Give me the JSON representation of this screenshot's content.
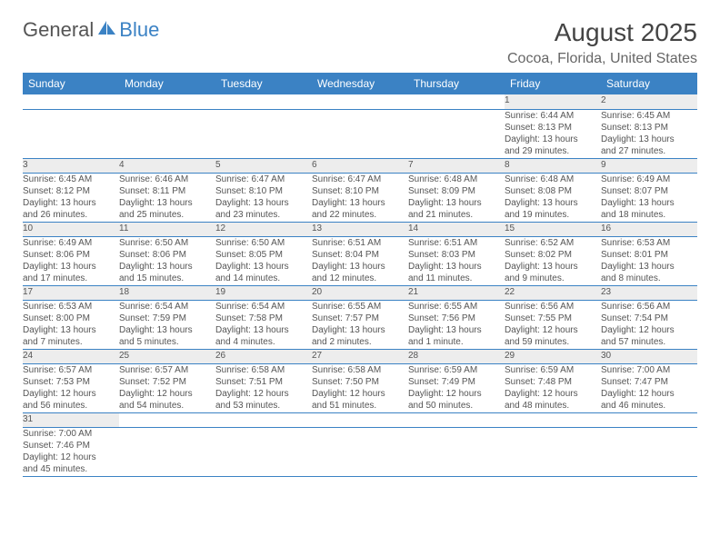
{
  "logo": {
    "part1": "General",
    "part2": "Blue"
  },
  "title": "August 2025",
  "location": "Cocoa, Florida, United States",
  "colors": {
    "header_bg": "#3b82c4",
    "header_text": "#ffffff",
    "daynum_bg": "#ededed",
    "border": "#3b82c4",
    "text": "#555555",
    "background": "#ffffff"
  },
  "fonts": {
    "title_size": 28,
    "location_size": 16,
    "head_size": 12,
    "body_size": 10
  },
  "day_headers": [
    "Sunday",
    "Monday",
    "Tuesday",
    "Wednesday",
    "Thursday",
    "Friday",
    "Saturday"
  ],
  "weeks": [
    [
      null,
      null,
      null,
      null,
      null,
      {
        "n": "1",
        "sr": "Sunrise: 6:44 AM",
        "ss": "Sunset: 8:13 PM",
        "d1": "Daylight: 13 hours",
        "d2": "and 29 minutes."
      },
      {
        "n": "2",
        "sr": "Sunrise: 6:45 AM",
        "ss": "Sunset: 8:13 PM",
        "d1": "Daylight: 13 hours",
        "d2": "and 27 minutes."
      }
    ],
    [
      {
        "n": "3",
        "sr": "Sunrise: 6:45 AM",
        "ss": "Sunset: 8:12 PM",
        "d1": "Daylight: 13 hours",
        "d2": "and 26 minutes."
      },
      {
        "n": "4",
        "sr": "Sunrise: 6:46 AM",
        "ss": "Sunset: 8:11 PM",
        "d1": "Daylight: 13 hours",
        "d2": "and 25 minutes."
      },
      {
        "n": "5",
        "sr": "Sunrise: 6:47 AM",
        "ss": "Sunset: 8:10 PM",
        "d1": "Daylight: 13 hours",
        "d2": "and 23 minutes."
      },
      {
        "n": "6",
        "sr": "Sunrise: 6:47 AM",
        "ss": "Sunset: 8:10 PM",
        "d1": "Daylight: 13 hours",
        "d2": "and 22 minutes."
      },
      {
        "n": "7",
        "sr": "Sunrise: 6:48 AM",
        "ss": "Sunset: 8:09 PM",
        "d1": "Daylight: 13 hours",
        "d2": "and 21 minutes."
      },
      {
        "n": "8",
        "sr": "Sunrise: 6:48 AM",
        "ss": "Sunset: 8:08 PM",
        "d1": "Daylight: 13 hours",
        "d2": "and 19 minutes."
      },
      {
        "n": "9",
        "sr": "Sunrise: 6:49 AM",
        "ss": "Sunset: 8:07 PM",
        "d1": "Daylight: 13 hours",
        "d2": "and 18 minutes."
      }
    ],
    [
      {
        "n": "10",
        "sr": "Sunrise: 6:49 AM",
        "ss": "Sunset: 8:06 PM",
        "d1": "Daylight: 13 hours",
        "d2": "and 17 minutes."
      },
      {
        "n": "11",
        "sr": "Sunrise: 6:50 AM",
        "ss": "Sunset: 8:06 PM",
        "d1": "Daylight: 13 hours",
        "d2": "and 15 minutes."
      },
      {
        "n": "12",
        "sr": "Sunrise: 6:50 AM",
        "ss": "Sunset: 8:05 PM",
        "d1": "Daylight: 13 hours",
        "d2": "and 14 minutes."
      },
      {
        "n": "13",
        "sr": "Sunrise: 6:51 AM",
        "ss": "Sunset: 8:04 PM",
        "d1": "Daylight: 13 hours",
        "d2": "and 12 minutes."
      },
      {
        "n": "14",
        "sr": "Sunrise: 6:51 AM",
        "ss": "Sunset: 8:03 PM",
        "d1": "Daylight: 13 hours",
        "d2": "and 11 minutes."
      },
      {
        "n": "15",
        "sr": "Sunrise: 6:52 AM",
        "ss": "Sunset: 8:02 PM",
        "d1": "Daylight: 13 hours",
        "d2": "and 9 minutes."
      },
      {
        "n": "16",
        "sr": "Sunrise: 6:53 AM",
        "ss": "Sunset: 8:01 PM",
        "d1": "Daylight: 13 hours",
        "d2": "and 8 minutes."
      }
    ],
    [
      {
        "n": "17",
        "sr": "Sunrise: 6:53 AM",
        "ss": "Sunset: 8:00 PM",
        "d1": "Daylight: 13 hours",
        "d2": "and 7 minutes."
      },
      {
        "n": "18",
        "sr": "Sunrise: 6:54 AM",
        "ss": "Sunset: 7:59 PM",
        "d1": "Daylight: 13 hours",
        "d2": "and 5 minutes."
      },
      {
        "n": "19",
        "sr": "Sunrise: 6:54 AM",
        "ss": "Sunset: 7:58 PM",
        "d1": "Daylight: 13 hours",
        "d2": "and 4 minutes."
      },
      {
        "n": "20",
        "sr": "Sunrise: 6:55 AM",
        "ss": "Sunset: 7:57 PM",
        "d1": "Daylight: 13 hours",
        "d2": "and 2 minutes."
      },
      {
        "n": "21",
        "sr": "Sunrise: 6:55 AM",
        "ss": "Sunset: 7:56 PM",
        "d1": "Daylight: 13 hours",
        "d2": "and 1 minute."
      },
      {
        "n": "22",
        "sr": "Sunrise: 6:56 AM",
        "ss": "Sunset: 7:55 PM",
        "d1": "Daylight: 12 hours",
        "d2": "and 59 minutes."
      },
      {
        "n": "23",
        "sr": "Sunrise: 6:56 AM",
        "ss": "Sunset: 7:54 PM",
        "d1": "Daylight: 12 hours",
        "d2": "and 57 minutes."
      }
    ],
    [
      {
        "n": "24",
        "sr": "Sunrise: 6:57 AM",
        "ss": "Sunset: 7:53 PM",
        "d1": "Daylight: 12 hours",
        "d2": "and 56 minutes."
      },
      {
        "n": "25",
        "sr": "Sunrise: 6:57 AM",
        "ss": "Sunset: 7:52 PM",
        "d1": "Daylight: 12 hours",
        "d2": "and 54 minutes."
      },
      {
        "n": "26",
        "sr": "Sunrise: 6:58 AM",
        "ss": "Sunset: 7:51 PM",
        "d1": "Daylight: 12 hours",
        "d2": "and 53 minutes."
      },
      {
        "n": "27",
        "sr": "Sunrise: 6:58 AM",
        "ss": "Sunset: 7:50 PM",
        "d1": "Daylight: 12 hours",
        "d2": "and 51 minutes."
      },
      {
        "n": "28",
        "sr": "Sunrise: 6:59 AM",
        "ss": "Sunset: 7:49 PM",
        "d1": "Daylight: 12 hours",
        "d2": "and 50 minutes."
      },
      {
        "n": "29",
        "sr": "Sunrise: 6:59 AM",
        "ss": "Sunset: 7:48 PM",
        "d1": "Daylight: 12 hours",
        "d2": "and 48 minutes."
      },
      {
        "n": "30",
        "sr": "Sunrise: 7:00 AM",
        "ss": "Sunset: 7:47 PM",
        "d1": "Daylight: 12 hours",
        "d2": "and 46 minutes."
      }
    ],
    [
      {
        "n": "31",
        "sr": "Sunrise: 7:00 AM",
        "ss": "Sunset: 7:46 PM",
        "d1": "Daylight: 12 hours",
        "d2": "and 45 minutes."
      },
      null,
      null,
      null,
      null,
      null,
      null
    ]
  ]
}
